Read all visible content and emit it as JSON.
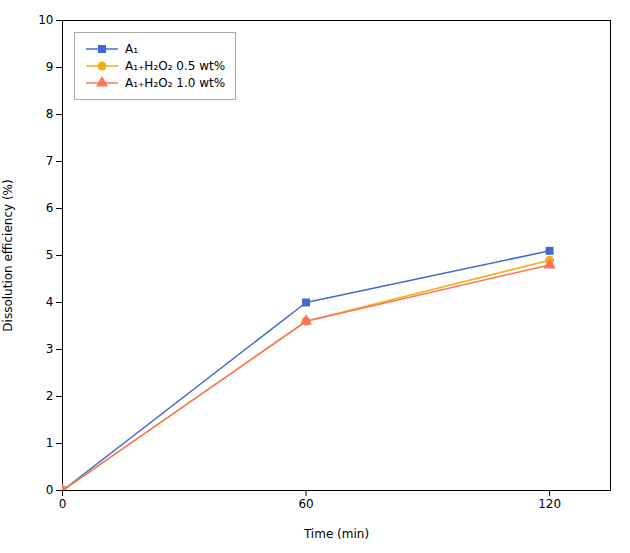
{
  "chart_data": {
    "type": "line",
    "series": [
      {
        "name": "A₁",
        "x": [
          0,
          60,
          120
        ],
        "values": [
          0,
          4.0,
          5.1
        ],
        "marker": "square",
        "line_style": "solid"
      },
      {
        "name": "A₁₊H₂O₂ 0.5 wt%",
        "x": [
          0,
          60,
          120
        ],
        "values": [
          0,
          3.6,
          4.9
        ],
        "marker": "circle",
        "line_style": "solid"
      },
      {
        "name": "A₁₊H₂O₂ 1.0 wt%",
        "x": [
          0,
          60,
          120
        ],
        "values": [
          0,
          3.6,
          4.8
        ],
        "marker": "triangle",
        "line_style": "solid"
      }
    ],
    "x_label": "Time (min)",
    "y_label": "Dissolution efficiency (%)",
    "xlim": [
      0,
      135
    ],
    "ylim": [
      0,
      10
    ],
    "xticks": [
      0,
      60,
      120
    ],
    "yticks": [
      0,
      1,
      2,
      3,
      4,
      5,
      6,
      7,
      8,
      9,
      10
    ],
    "grid": false,
    "legend": "upper left"
  }
}
